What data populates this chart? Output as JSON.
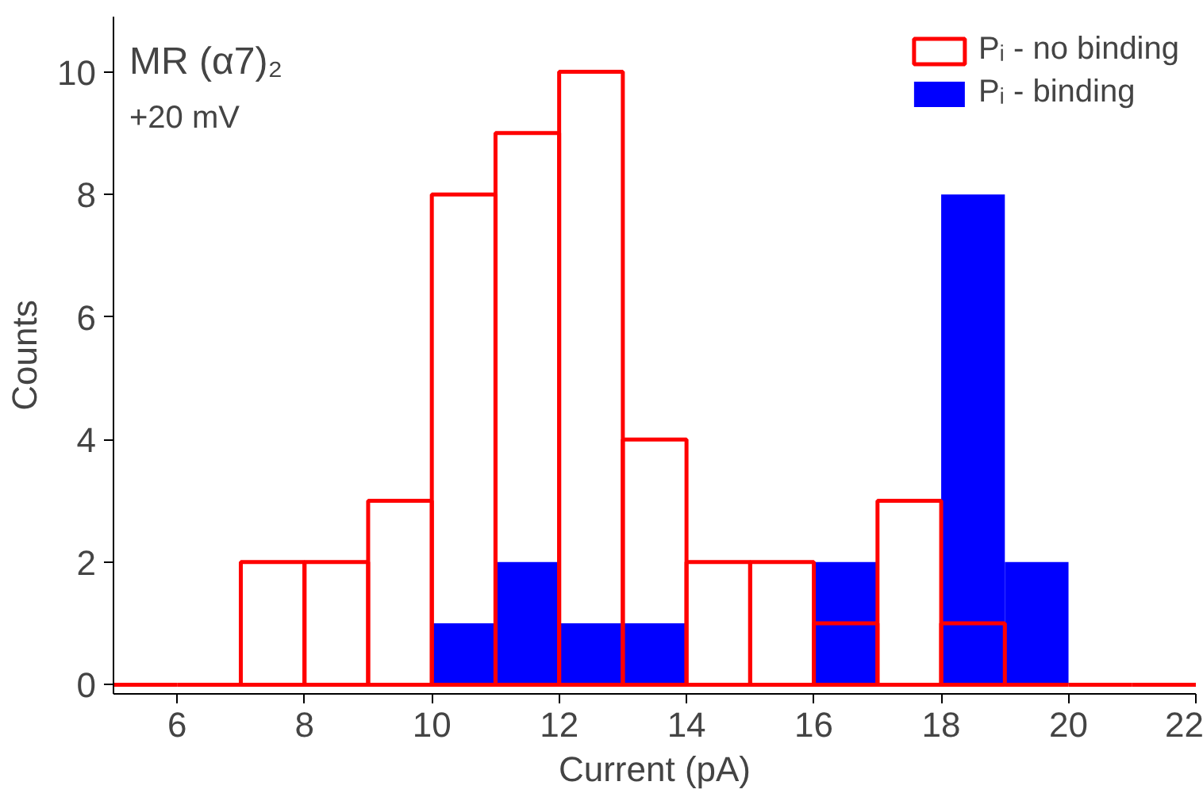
{
  "chart_data": {
    "type": "histogram",
    "xlabel": "Current (pA)",
    "ylabel": "Counts",
    "annotations": [
      "MR (α7)₂",
      "+20 mV"
    ],
    "bins": [
      5,
      6,
      7,
      8,
      9,
      10,
      11,
      12,
      13,
      14,
      15,
      16,
      17,
      18,
      19,
      20,
      21,
      22
    ],
    "series": [
      {
        "name": "Pᵢ - binding",
        "color": "#0000ff",
        "values": [
          0,
          0,
          0,
          0,
          0,
          1,
          2,
          1,
          1,
          0,
          0,
          2,
          0,
          8,
          2,
          0,
          0
        ]
      },
      {
        "name": "Pᵢ - no binding",
        "color": "#ff0000",
        "values": [
          0,
          0,
          2,
          2,
          3,
          8,
          9,
          10,
          4,
          2,
          2,
          1,
          3,
          1,
          0,
          0,
          0
        ]
      }
    ],
    "xlim": [
      5,
      22
    ],
    "ylim": [
      -0.15,
      10.9
    ],
    "xticks": [
      6,
      8,
      10,
      12,
      14,
      16,
      18,
      20,
      22
    ],
    "yticks": [
      0,
      2,
      4,
      6,
      8,
      10
    ],
    "grid": false,
    "legend": "top right"
  }
}
